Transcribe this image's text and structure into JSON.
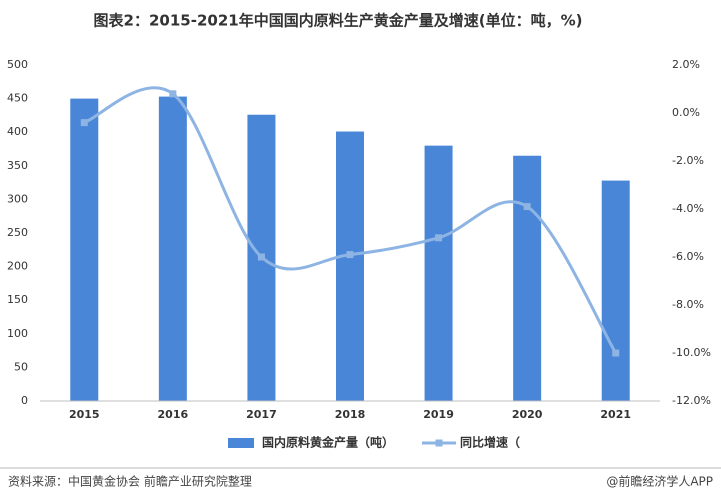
{
  "chart_data": {
    "type": "bar",
    "title": "图表2：2015-2021年中国国内原料生产黄金产量及增速(单位：吨，%)",
    "categories": [
      "2015",
      "2016",
      "2017",
      "2018",
      "2019",
      "2020",
      "2021"
    ],
    "series": [
      {
        "name": "国内原料黄金产量（吨）",
        "type": "bar",
        "color": "#4a86d8",
        "values": [
          450,
          453,
          426,
          401,
          380,
          365,
          328
        ]
      },
      {
        "name": "同比增速（",
        "type": "line",
        "axis": "y2",
        "color": "#8eb4e3",
        "values": [
          -0.4,
          0.8,
          -6.0,
          -5.9,
          -5.2,
          -3.9,
          -10.0
        ]
      }
    ],
    "ylim": [
      0,
      500
    ],
    "yticks": [
      0,
      50,
      100,
      150,
      200,
      250,
      300,
      350,
      400,
      450,
      500
    ],
    "y2lim": [
      -12,
      2
    ],
    "y2ticks": [
      {
        "value": -12,
        "label": "-12.0%"
      },
      {
        "value": -10,
        "label": "-10.0%"
      },
      {
        "value": -8,
        "label": "-8.0%"
      },
      {
        "value": -6,
        "label": "-6.0%"
      },
      {
        "value": -4,
        "label": "-4.0%"
      },
      {
        "value": -2,
        "label": "-2.0%"
      },
      {
        "value": 0,
        "label": "0.0%"
      },
      {
        "value": 2,
        "label": "2.0%"
      }
    ],
    "legend": "bottom",
    "source": "资料来源：中国黄金协会 前瞻产业研究院整理",
    "credit": "@前瞻经济学人APP"
  }
}
